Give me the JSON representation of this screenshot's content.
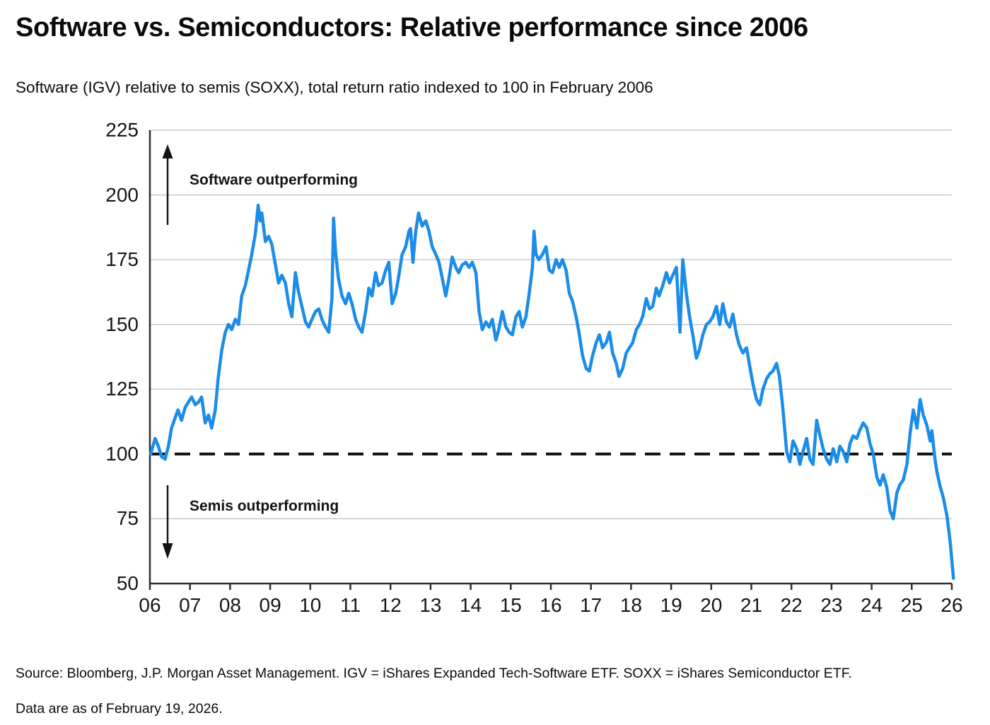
{
  "header": {
    "title": "Software vs. Semiconductors: Relative performance since 2006",
    "subtitle": "Software (IGV) relative to semis (SOXX), total return ratio indexed to 100 in February 2006"
  },
  "footnotes": {
    "source": "Source: Bloomberg, J.P. Morgan Asset Management. IGV = iShares Expanded Tech-Software ETF. SOXX = iShares Semiconductor ETF.",
    "as_of": "Data are as of February 19, 2026."
  },
  "chart_data": {
    "type": "line",
    "title": "Software vs. Semiconductors: Relative performance since 2006",
    "series_name": "IGV / SOXX total return ratio (Feb 2006 = 100)",
    "line_color": "#1b8ce8",
    "grid_color": "#c9c9c9",
    "axis_color": "#2e2e2e",
    "baseline": {
      "value": 100,
      "style": "dashed",
      "color": "#111111"
    },
    "ylim": [
      50,
      225
    ],
    "xlim": [
      2006,
      2026.1
    ],
    "y_ticks": [
      225,
      200,
      175,
      150,
      125,
      100,
      75,
      50
    ],
    "x_ticks": [
      "06",
      "07",
      "08",
      "09",
      "10",
      "11",
      "12",
      "13",
      "14",
      "15",
      "16",
      "17",
      "18",
      "19",
      "20",
      "21",
      "22",
      "23",
      "24",
      "25",
      "26"
    ],
    "legend_position": "none",
    "grid": "horizontal-only",
    "annotations": [
      {
        "text": "Software outperforming",
        "arrow": "up"
      },
      {
        "text": "Semis outperforming",
        "arrow": "down"
      }
    ],
    "points": [
      [
        2006.02,
        100
      ],
      [
        2006.13,
        106
      ],
      [
        2006.21,
        103
      ],
      [
        2006.29,
        99
      ],
      [
        2006.38,
        98
      ],
      [
        2006.46,
        103
      ],
      [
        2006.54,
        110
      ],
      [
        2006.63,
        114
      ],
      [
        2006.7,
        117
      ],
      [
        2006.79,
        113
      ],
      [
        2006.88,
        118
      ],
      [
        2006.96,
        120
      ],
      [
        2007.04,
        122
      ],
      [
        2007.13,
        119
      ],
      [
        2007.21,
        120
      ],
      [
        2007.29,
        122
      ],
      [
        2007.38,
        112
      ],
      [
        2007.46,
        115
      ],
      [
        2007.54,
        110
      ],
      [
        2007.63,
        117
      ],
      [
        2007.7,
        129
      ],
      [
        2007.79,
        140
      ],
      [
        2007.88,
        147
      ],
      [
        2007.96,
        150
      ],
      [
        2008.04,
        148
      ],
      [
        2008.13,
        152
      ],
      [
        2008.21,
        150
      ],
      [
        2008.29,
        161
      ],
      [
        2008.38,
        165
      ],
      [
        2008.46,
        171
      ],
      [
        2008.54,
        177
      ],
      [
        2008.63,
        185
      ],
      [
        2008.7,
        196
      ],
      [
        2008.75,
        190
      ],
      [
        2008.79,
        193
      ],
      [
        2008.88,
        182
      ],
      [
        2008.96,
        184
      ],
      [
        2009.04,
        181
      ],
      [
        2009.13,
        173
      ],
      [
        2009.21,
        166
      ],
      [
        2009.29,
        169
      ],
      [
        2009.38,
        166
      ],
      [
        2009.46,
        158
      ],
      [
        2009.54,
        153
      ],
      [
        2009.63,
        170
      ],
      [
        2009.7,
        163
      ],
      [
        2009.79,
        157
      ],
      [
        2009.88,
        151
      ],
      [
        2009.96,
        149
      ],
      [
        2010.04,
        152
      ],
      [
        2010.13,
        155
      ],
      [
        2010.21,
        156
      ],
      [
        2010.29,
        152
      ],
      [
        2010.38,
        149
      ],
      [
        2010.46,
        147
      ],
      [
        2010.54,
        160
      ],
      [
        2010.58,
        191
      ],
      [
        2010.63,
        178
      ],
      [
        2010.7,
        168
      ],
      [
        2010.79,
        161
      ],
      [
        2010.88,
        158
      ],
      [
        2010.96,
        162
      ],
      [
        2011.04,
        158
      ],
      [
        2011.13,
        152
      ],
      [
        2011.21,
        149
      ],
      [
        2011.29,
        147
      ],
      [
        2011.38,
        155
      ],
      [
        2011.46,
        164
      ],
      [
        2011.54,
        161
      ],
      [
        2011.63,
        170
      ],
      [
        2011.7,
        165
      ],
      [
        2011.79,
        166
      ],
      [
        2011.88,
        171
      ],
      [
        2011.96,
        174
      ],
      [
        2012.04,
        158
      ],
      [
        2012.13,
        162
      ],
      [
        2012.21,
        169
      ],
      [
        2012.29,
        177
      ],
      [
        2012.38,
        180
      ],
      [
        2012.46,
        186
      ],
      [
        2012.5,
        187
      ],
      [
        2012.56,
        174
      ],
      [
        2012.63,
        186
      ],
      [
        2012.7,
        193
      ],
      [
        2012.79,
        188
      ],
      [
        2012.88,
        190
      ],
      [
        2012.96,
        186
      ],
      [
        2013.04,
        180
      ],
      [
        2013.13,
        177
      ],
      [
        2013.21,
        174
      ],
      [
        2013.29,
        168
      ],
      [
        2013.38,
        161
      ],
      [
        2013.46,
        168
      ],
      [
        2013.54,
        176
      ],
      [
        2013.63,
        172
      ],
      [
        2013.7,
        170
      ],
      [
        2013.79,
        173
      ],
      [
        2013.88,
        174
      ],
      [
        2013.96,
        172
      ],
      [
        2014.04,
        174
      ],
      [
        2014.13,
        170
      ],
      [
        2014.21,
        155
      ],
      [
        2014.29,
        148
      ],
      [
        2014.38,
        151
      ],
      [
        2014.46,
        149
      ],
      [
        2014.54,
        152
      ],
      [
        2014.63,
        144
      ],
      [
        2014.7,
        148
      ],
      [
        2014.79,
        155
      ],
      [
        2014.88,
        149
      ],
      [
        2014.96,
        147
      ],
      [
        2015.04,
        146
      ],
      [
        2015.13,
        153
      ],
      [
        2015.21,
        155
      ],
      [
        2015.29,
        149
      ],
      [
        2015.38,
        153
      ],
      [
        2015.46,
        162
      ],
      [
        2015.54,
        172
      ],
      [
        2015.58,
        186
      ],
      [
        2015.63,
        177
      ],
      [
        2015.7,
        175
      ],
      [
        2015.79,
        177
      ],
      [
        2015.88,
        180
      ],
      [
        2015.96,
        171
      ],
      [
        2016.04,
        170
      ],
      [
        2016.13,
        175
      ],
      [
        2016.21,
        172
      ],
      [
        2016.29,
        175
      ],
      [
        2016.38,
        171
      ],
      [
        2016.46,
        162
      ],
      [
        2016.54,
        159
      ],
      [
        2016.63,
        153
      ],
      [
        2016.7,
        147
      ],
      [
        2016.79,
        138
      ],
      [
        2016.88,
        133
      ],
      [
        2016.96,
        132
      ],
      [
        2017.04,
        138
      ],
      [
        2017.13,
        143
      ],
      [
        2017.21,
        146
      ],
      [
        2017.29,
        141
      ],
      [
        2017.38,
        143
      ],
      [
        2017.46,
        147
      ],
      [
        2017.54,
        139
      ],
      [
        2017.63,
        135
      ],
      [
        2017.7,
        130
      ],
      [
        2017.79,
        133
      ],
      [
        2017.88,
        139
      ],
      [
        2017.96,
        141
      ],
      [
        2018.04,
        143
      ],
      [
        2018.13,
        148
      ],
      [
        2018.21,
        150
      ],
      [
        2018.29,
        153
      ],
      [
        2018.38,
        160
      ],
      [
        2018.46,
        156
      ],
      [
        2018.54,
        157
      ],
      [
        2018.63,
        164
      ],
      [
        2018.7,
        161
      ],
      [
        2018.79,
        165
      ],
      [
        2018.88,
        170
      ],
      [
        2018.96,
        166
      ],
      [
        2019.04,
        169
      ],
      [
        2019.13,
        172
      ],
      [
        2019.18,
        158
      ],
      [
        2019.22,
        147
      ],
      [
        2019.29,
        175
      ],
      [
        2019.38,
        162
      ],
      [
        2019.46,
        153
      ],
      [
        2019.54,
        146
      ],
      [
        2019.63,
        137
      ],
      [
        2019.7,
        140
      ],
      [
        2019.79,
        146
      ],
      [
        2019.88,
        150
      ],
      [
        2019.96,
        151
      ],
      [
        2020.04,
        153
      ],
      [
        2020.13,
        157
      ],
      [
        2020.21,
        150
      ],
      [
        2020.29,
        158
      ],
      [
        2020.38,
        151
      ],
      [
        2020.46,
        149
      ],
      [
        2020.54,
        154
      ],
      [
        2020.63,
        146
      ],
      [
        2020.7,
        142
      ],
      [
        2020.79,
        139
      ],
      [
        2020.88,
        141
      ],
      [
        2020.96,
        134
      ],
      [
        2021.04,
        127
      ],
      [
        2021.13,
        121
      ],
      [
        2021.21,
        119
      ],
      [
        2021.29,
        125
      ],
      [
        2021.38,
        129
      ],
      [
        2021.46,
        131
      ],
      [
        2021.54,
        132
      ],
      [
        2021.63,
        135
      ],
      [
        2021.7,
        130
      ],
      [
        2021.79,
        117
      ],
      [
        2021.88,
        101
      ],
      [
        2021.96,
        97
      ],
      [
        2022.04,
        105
      ],
      [
        2022.13,
        102
      ],
      [
        2022.21,
        96
      ],
      [
        2022.29,
        101
      ],
      [
        2022.38,
        106
      ],
      [
        2022.46,
        98
      ],
      [
        2022.54,
        96
      ],
      [
        2022.63,
        113
      ],
      [
        2022.7,
        108
      ],
      [
        2022.79,
        102
      ],
      [
        2022.88,
        98
      ],
      [
        2022.96,
        96
      ],
      [
        2023.04,
        102
      ],
      [
        2023.13,
        97
      ],
      [
        2023.21,
        103
      ],
      [
        2023.29,
        101
      ],
      [
        2023.38,
        97
      ],
      [
        2023.46,
        104
      ],
      [
        2023.54,
        107
      ],
      [
        2023.63,
        106
      ],
      [
        2023.7,
        109
      ],
      [
        2023.79,
        112
      ],
      [
        2023.88,
        110
      ],
      [
        2023.96,
        104
      ],
      [
        2024.04,
        100
      ],
      [
        2024.13,
        91
      ],
      [
        2024.21,
        88
      ],
      [
        2024.29,
        92
      ],
      [
        2024.38,
        87
      ],
      [
        2024.46,
        78
      ],
      [
        2024.54,
        75
      ],
      [
        2024.63,
        85
      ],
      [
        2024.7,
        88
      ],
      [
        2024.79,
        90
      ],
      [
        2024.88,
        96
      ],
      [
        2024.96,
        108
      ],
      [
        2025.04,
        117
      ],
      [
        2025.13,
        110
      ],
      [
        2025.21,
        121
      ],
      [
        2025.29,
        115
      ],
      [
        2025.38,
        111
      ],
      [
        2025.46,
        105
      ],
      [
        2025.5,
        109
      ],
      [
        2025.58,
        98
      ],
      [
        2025.63,
        93
      ],
      [
        2025.7,
        88
      ],
      [
        2025.79,
        83
      ],
      [
        2025.88,
        76
      ],
      [
        2025.96,
        66
      ],
      [
        2026.04,
        52
      ]
    ]
  }
}
